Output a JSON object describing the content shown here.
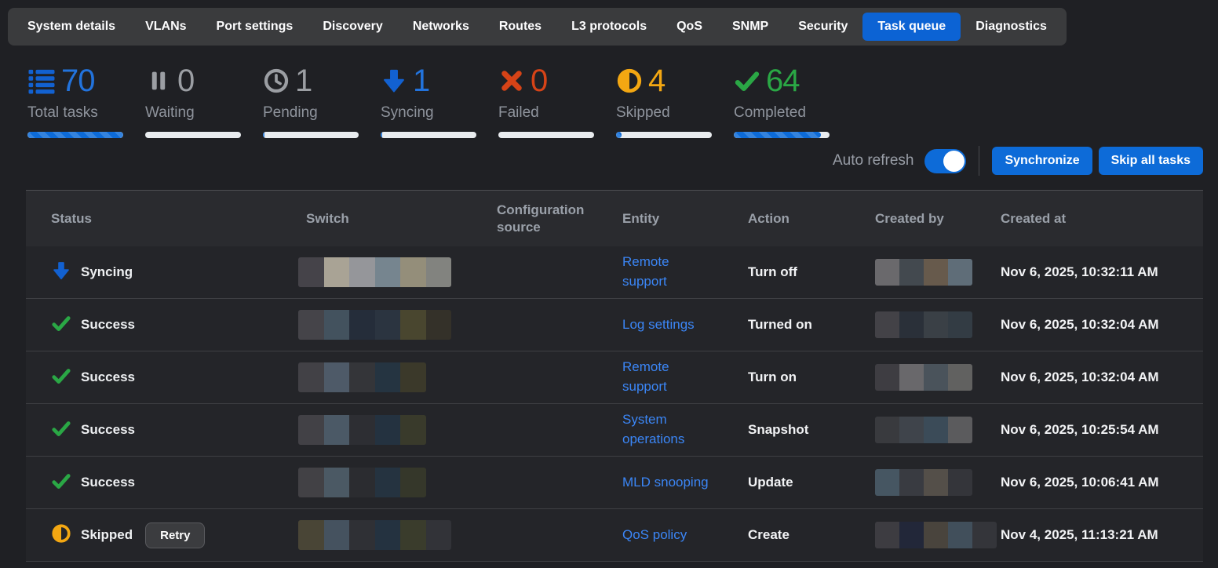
{
  "nav": {
    "tabs": [
      {
        "label": "System details"
      },
      {
        "label": "VLANs"
      },
      {
        "label": "Port settings"
      },
      {
        "label": "Discovery"
      },
      {
        "label": "Networks"
      },
      {
        "label": "Routes"
      },
      {
        "label": "L3 protocols"
      },
      {
        "label": "QoS"
      },
      {
        "label": "SNMP"
      },
      {
        "label": "Security"
      },
      {
        "label": "Task queue"
      },
      {
        "label": "Diagnostics"
      }
    ],
    "active_tab": "Task queue"
  },
  "stats": [
    {
      "icon": "list-icon",
      "value": "70",
      "label": "Total tasks",
      "value_color": "#2273dd",
      "bar_pct": 100
    },
    {
      "icon": "pause-icon",
      "value": "0",
      "label": "Waiting",
      "value_color": "#9b9ea3",
      "bar_pct": 0
    },
    {
      "icon": "clock-icon",
      "value": "1",
      "label": "Pending",
      "value_color": "#9b9ea3",
      "bar_pct": 2
    },
    {
      "icon": "arrow-down-icon",
      "value": "1",
      "label": "Syncing",
      "value_color": "#2273dd",
      "bar_pct": 2
    },
    {
      "icon": "x-icon",
      "value": "0",
      "label": "Failed",
      "value_color": "#d64317",
      "bar_pct": 0
    },
    {
      "icon": "half-circle-icon",
      "value": "4",
      "label": "Skipped",
      "value_color": "#f3a712",
      "bar_pct": 6
    },
    {
      "icon": "check-icon",
      "value": "64",
      "label": "Completed",
      "value_color": "#2aa745",
      "bar_pct": 91
    }
  ],
  "controls": {
    "auto_refresh_label": "Auto refresh",
    "auto_refresh_state": "on",
    "synchronize_label": "Synchronize",
    "skip_all_tasks_label": "Skip all tasks"
  },
  "table": {
    "columns": [
      {
        "label": "Status"
      },
      {
        "label": "Switch"
      },
      {
        "label": "Configuration source"
      },
      {
        "label": "Entity"
      },
      {
        "label": "Action"
      },
      {
        "label": "Created by"
      },
      {
        "label": "Created at"
      }
    ],
    "rows": [
      {
        "status": "Syncing",
        "status_icon": "sync-down-arrow-icon",
        "switch_blur": [
          "#454349",
          "#a9a395",
          "#95969a",
          "#76858f",
          "#948e7a",
          "#82837f"
        ],
        "configuration_source": "",
        "entity": "Remote support",
        "action": "Turn off",
        "created_by_blur": [
          "#6a696c",
          "#43494f",
          "#675a4c",
          "#5f6d78"
        ],
        "created_at": "Nov 6, 2025, 10:32:11 AM"
      },
      {
        "status": "Success",
        "status_icon": "success-check-icon",
        "switch_blur": [
          "#454449",
          "#43525e",
          "#252d3a",
          "#2b3440",
          "#49462f",
          "#343129"
        ],
        "configuration_source": "",
        "entity": "Log settings",
        "action": "Turned on",
        "created_by_blur": [
          "#434247",
          "#2a3039",
          "#3a4046",
          "#333c44"
        ],
        "created_at": "Nov 6, 2025, 10:32:04 AM"
      },
      {
        "status": "Success",
        "status_icon": "success-check-icon",
        "switch_blur": [
          "#424146",
          "#4e5a68",
          "#343539",
          "#253441",
          "#3b392a"
        ],
        "configuration_source": "",
        "entity": "Remote support",
        "action": "Turn on",
        "created_by_blur": [
          "#3e3d42",
          "#69686b",
          "#4a535b",
          "#616160"
        ],
        "created_at": "Nov 6, 2025, 10:32:04 AM"
      },
      {
        "status": "Success",
        "status_icon": "success-check-icon",
        "switch_blur": [
          "#424146",
          "#4b5966",
          "#2d2e33",
          "#243240",
          "#393a2b"
        ],
        "configuration_source": "",
        "entity": "System operations",
        "action": "Snapshot",
        "created_by_blur": [
          "#393a3e",
          "#3f444b",
          "#3b4b58",
          "#5b5b5d"
        ],
        "created_at": "Nov 6, 2025, 10:25:54 AM"
      },
      {
        "status": "Success",
        "status_icon": "success-check-icon",
        "switch_blur": [
          "#424145",
          "#4b5964",
          "#2b2c30",
          "#253340",
          "#35372a"
        ],
        "configuration_source": "",
        "entity": "MLD snooping",
        "action": "Update",
        "created_by_blur": [
          "#465662",
          "#393b41",
          "#544f49",
          "#34353a"
        ],
        "created_at": "Nov 6, 2025, 10:06:41 AM"
      },
      {
        "status": "Skipped",
        "status_icon": "skipped-half-circle-icon",
        "retry_label": "Retry",
        "switch_blur": [
          "#494536",
          "#45525f",
          "#2f3035",
          "#243240",
          "#3a3c2c",
          "#323338"
        ],
        "configuration_source": "",
        "entity": "QoS policy",
        "action": "Create",
        "created_by_blur": [
          "#3d3c41",
          "#222739",
          "#49443d",
          "#414f5b",
          "#34353a"
        ],
        "created_at": "Nov 4, 2025, 11:13:21 AM"
      }
    ]
  },
  "colors": {
    "accent_blue": "#0d6bd8",
    "link_blue": "#3b86f6",
    "success_green": "#2aa745",
    "failed_red": "#d64317",
    "skipped_amber": "#f3a712",
    "bar_track": "#e9ecef"
  }
}
